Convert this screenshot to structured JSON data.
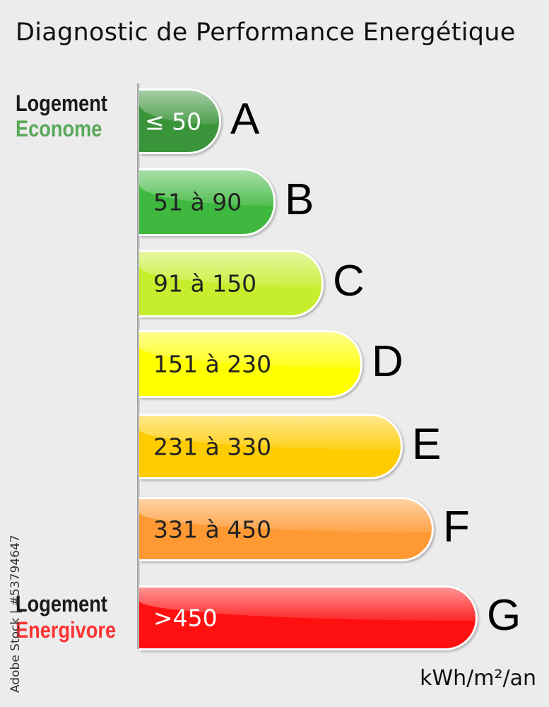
{
  "title": "Diagnostic de Performance Energétique",
  "labels": {
    "top_line1": "Logement",
    "top_line2": "Econome",
    "bottom_line1": "Logement",
    "bottom_line2": "Energivore"
  },
  "unit": "kWh/m²/an",
  "watermark": "Adobe Stock | #53794647",
  "classes": [
    {
      "letter": "A",
      "range": "≤ 50",
      "color": "#3a943a",
      "text_color": "#ffffff"
    },
    {
      "letter": "B",
      "range": "51 à 90",
      "color": "#3fb83f",
      "text_color": "#222222"
    },
    {
      "letter": "C",
      "range": "91 à 150",
      "color": "#c6ee2c",
      "text_color": "#222222"
    },
    {
      "letter": "D",
      "range": "151 à 230",
      "color": "#ffff00",
      "text_color": "#222222"
    },
    {
      "letter": "E",
      "range": "231 à 330",
      "color": "#ffcc00",
      "text_color": "#222222"
    },
    {
      "letter": "F",
      "range": "331 à 450",
      "color": "#ff9933",
      "text_color": "#222222"
    },
    {
      "letter": "G",
      "range": ">450",
      "color": "#ff1010",
      "text_color": "#ffffff"
    }
  ],
  "colors": {
    "econome": "#5aa85a",
    "energivore": "#ff3333"
  }
}
